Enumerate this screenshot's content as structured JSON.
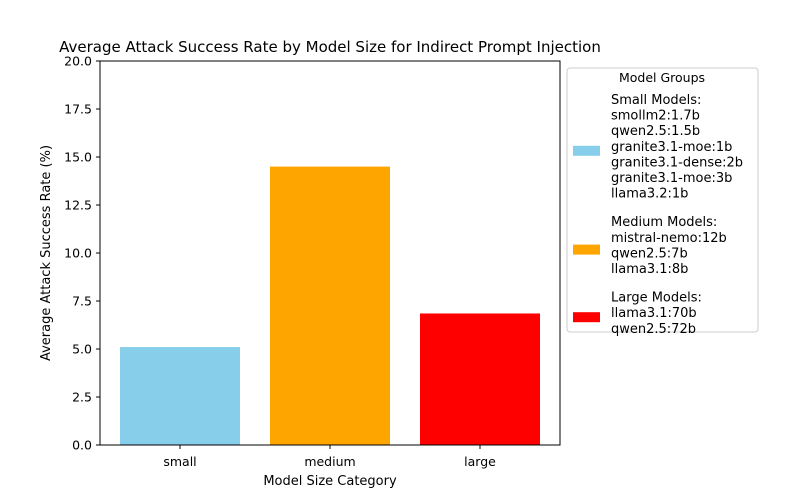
{
  "chart_data": {
    "type": "bar",
    "title": "Average Attack Success Rate by Model Size for Indirect Prompt Injection",
    "xlabel": "Model Size Category",
    "ylabel": "Average Attack Success Rate (%)",
    "categories": [
      "small",
      "medium",
      "large"
    ],
    "values": [
      5.1,
      14.5,
      6.85
    ],
    "colors": [
      "#87CEEB",
      "#FFA500",
      "#FF0000"
    ],
    "ylim": [
      0,
      20
    ],
    "yticks": [
      "0.0",
      "2.5",
      "5.0",
      "7.5",
      "10.0",
      "12.5",
      "15.0",
      "17.5",
      "20.0"
    ],
    "grid": false,
    "legend": {
      "title": "Model Groups",
      "placement": "outside-right",
      "entries": [
        {
          "color": "#87CEEB",
          "lines": [
            "Small Models:",
            "smollm2:1.7b",
            "qwen2.5:1.5b",
            "granite3.1-moe:1b",
            "granite3.1-dense:2b",
            "granite3.1-moe:3b",
            "llama3.2:1b"
          ]
        },
        {
          "color": "#FFA500",
          "lines": [
            "Medium Models:",
            "mistral-nemo:12b",
            "qwen2.5:7b",
            "llama3.1:8b"
          ]
        },
        {
          "color": "#FF0000",
          "lines": [
            "Large Models:",
            "llama3.1:70b",
            "qwen2.5:72b"
          ]
        }
      ]
    }
  }
}
